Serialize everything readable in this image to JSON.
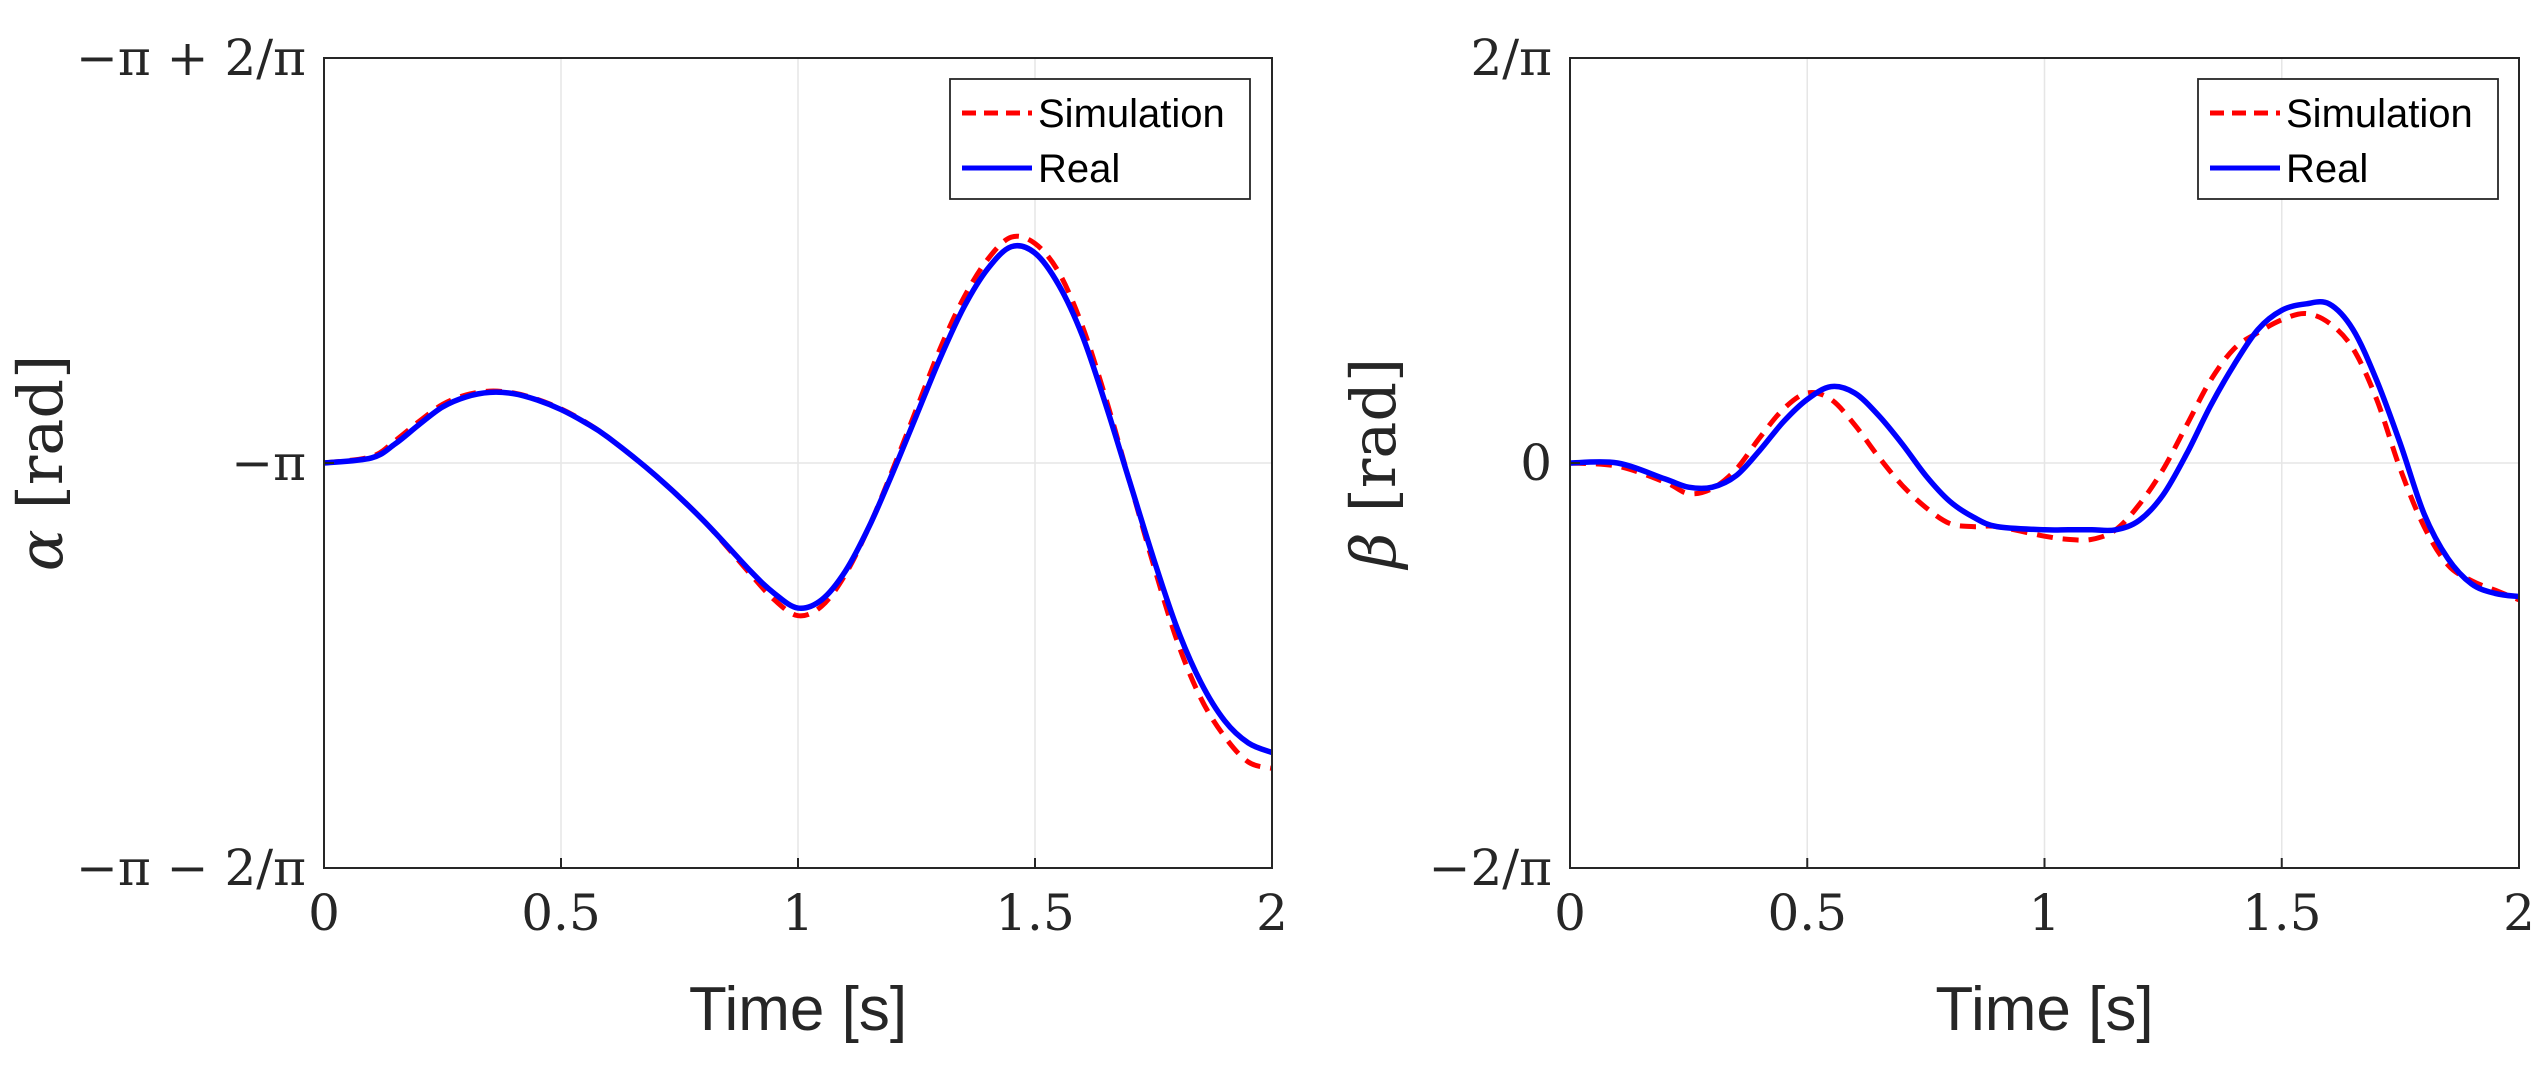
{
  "colors": {
    "simulation": "#ff0000",
    "real": "#0000ff",
    "axis": "#262626",
    "grid": "#e6e6e6"
  },
  "chart_data": [
    {
      "type": "line",
      "xlabel": "Time [s]",
      "ylabel_symbol": "α",
      "ylabel_unit": "[rad]",
      "xlim": [
        0,
        2
      ],
      "ylim_offset": [
        -0.6366,
        0.6366
      ],
      "y_reference": "-π",
      "xticks": [
        0,
        0.5,
        1,
        1.5,
        2
      ],
      "xtick_labels": [
        "0",
        "0.5",
        "1",
        "1.5",
        "2"
      ],
      "yticks": [
        -0.6366,
        0,
        0.6366
      ],
      "ytick_labels": [
        "−π − 2/π",
        "−π",
        "−π + 2/π"
      ],
      "grid": true,
      "legend": "top-right",
      "series": [
        {
          "name": "Simulation",
          "style": "dashed",
          "x": [
            0,
            0.1,
            0.15,
            0.2,
            0.25,
            0.3,
            0.35,
            0.4,
            0.45,
            0.5,
            0.55,
            0.6,
            0.7,
            0.8,
            0.9,
            0.95,
            1.0,
            1.05,
            1.1,
            1.15,
            1.2,
            1.25,
            1.3,
            1.35,
            1.4,
            1.45,
            1.5,
            1.55,
            1.6,
            1.65,
            1.7,
            1.75,
            1.8,
            1.85,
            1.9,
            1.95,
            2.0
          ],
          "values": [
            0,
            0.01,
            0.035,
            0.065,
            0.092,
            0.107,
            0.113,
            0.11,
            0.1,
            0.085,
            0.065,
            0.04,
            -0.02,
            -0.09,
            -0.175,
            -0.215,
            -0.24,
            -0.225,
            -0.175,
            -0.1,
            -0.01,
            0.085,
            0.18,
            0.26,
            0.32,
            0.355,
            0.345,
            0.3,
            0.215,
            0.1,
            -0.03,
            -0.16,
            -0.28,
            -0.37,
            -0.43,
            -0.47,
            -0.48
          ]
        },
        {
          "name": "Real",
          "style": "solid",
          "x": [
            0,
            0.1,
            0.15,
            0.2,
            0.25,
            0.3,
            0.35,
            0.4,
            0.45,
            0.5,
            0.55,
            0.6,
            0.7,
            0.8,
            0.9,
            0.95,
            1.0,
            1.05,
            1.1,
            1.15,
            1.2,
            1.25,
            1.3,
            1.35,
            1.4,
            1.45,
            1.5,
            1.55,
            1.6,
            1.65,
            1.7,
            1.75,
            1.8,
            1.85,
            1.9,
            1.95,
            2.0
          ],
          "values": [
            0,
            0.008,
            0.03,
            0.06,
            0.088,
            0.104,
            0.111,
            0.109,
            0.099,
            0.084,
            0.064,
            0.04,
            -0.02,
            -0.09,
            -0.17,
            -0.205,
            -0.228,
            -0.215,
            -0.17,
            -0.1,
            -0.015,
            0.075,
            0.165,
            0.245,
            0.305,
            0.34,
            0.33,
            0.28,
            0.2,
            0.09,
            -0.03,
            -0.15,
            -0.26,
            -0.345,
            -0.405,
            -0.44,
            -0.455
          ]
        }
      ]
    },
    {
      "type": "line",
      "xlabel": "Time [s]",
      "ylabel_symbol": "β",
      "ylabel_unit": "[rad]",
      "xlim": [
        0,
        2
      ],
      "ylim": [
        -0.6366,
        0.6366
      ],
      "xticks": [
        0,
        0.5,
        1,
        1.5,
        2
      ],
      "xtick_labels": [
        "0",
        "0.5",
        "1",
        "1.5",
        "2"
      ],
      "yticks": [
        -0.6366,
        0,
        0.6366
      ],
      "ytick_labels": [
        "−2/π",
        "0",
        "2/π"
      ],
      "grid": true,
      "legend": "top-right",
      "series": [
        {
          "name": "Simulation",
          "style": "dashed",
          "x": [
            0,
            0.1,
            0.2,
            0.25,
            0.3,
            0.35,
            0.4,
            0.45,
            0.5,
            0.55,
            0.6,
            0.65,
            0.7,
            0.75,
            0.8,
            0.85,
            0.9,
            1.0,
            1.05,
            1.1,
            1.15,
            1.2,
            1.25,
            1.3,
            1.35,
            1.4,
            1.45,
            1.5,
            1.55,
            1.6,
            1.65,
            1.7,
            1.75,
            1.8,
            1.85,
            1.9,
            1.95,
            2.0
          ],
          "values": [
            0,
            -0.005,
            -0.03,
            -0.048,
            -0.04,
            -0.01,
            0.04,
            0.085,
            0.11,
            0.1,
            0.06,
            0.01,
            -0.035,
            -0.07,
            -0.095,
            -0.1,
            -0.1,
            -0.115,
            -0.12,
            -0.12,
            -0.105,
            -0.065,
            -0.01,
            0.06,
            0.13,
            0.18,
            0.205,
            0.225,
            0.235,
            0.22,
            0.18,
            0.1,
            -0.01,
            -0.1,
            -0.16,
            -0.185,
            -0.2,
            -0.215
          ]
        },
        {
          "name": "Real",
          "style": "solid",
          "x": [
            0,
            0.1,
            0.2,
            0.25,
            0.3,
            0.35,
            0.4,
            0.45,
            0.5,
            0.55,
            0.6,
            0.65,
            0.7,
            0.75,
            0.8,
            0.85,
            0.9,
            1.0,
            1.05,
            1.1,
            1.15,
            1.2,
            1.25,
            1.3,
            1.35,
            1.4,
            1.45,
            1.5,
            1.55,
            1.6,
            1.65,
            1.7,
            1.75,
            1.8,
            1.85,
            1.9,
            1.95,
            2.0
          ],
          "values": [
            0,
            0,
            -0.025,
            -0.038,
            -0.038,
            -0.02,
            0.02,
            0.065,
            0.1,
            0.12,
            0.11,
            0.075,
            0.03,
            -0.02,
            -0.06,
            -0.085,
            -0.1,
            -0.105,
            -0.105,
            -0.105,
            -0.105,
            -0.09,
            -0.05,
            0.015,
            0.09,
            0.155,
            0.21,
            0.24,
            0.25,
            0.25,
            0.21,
            0.13,
            0.03,
            -0.08,
            -0.15,
            -0.19,
            -0.205,
            -0.21
          ]
        }
      ]
    }
  ]
}
